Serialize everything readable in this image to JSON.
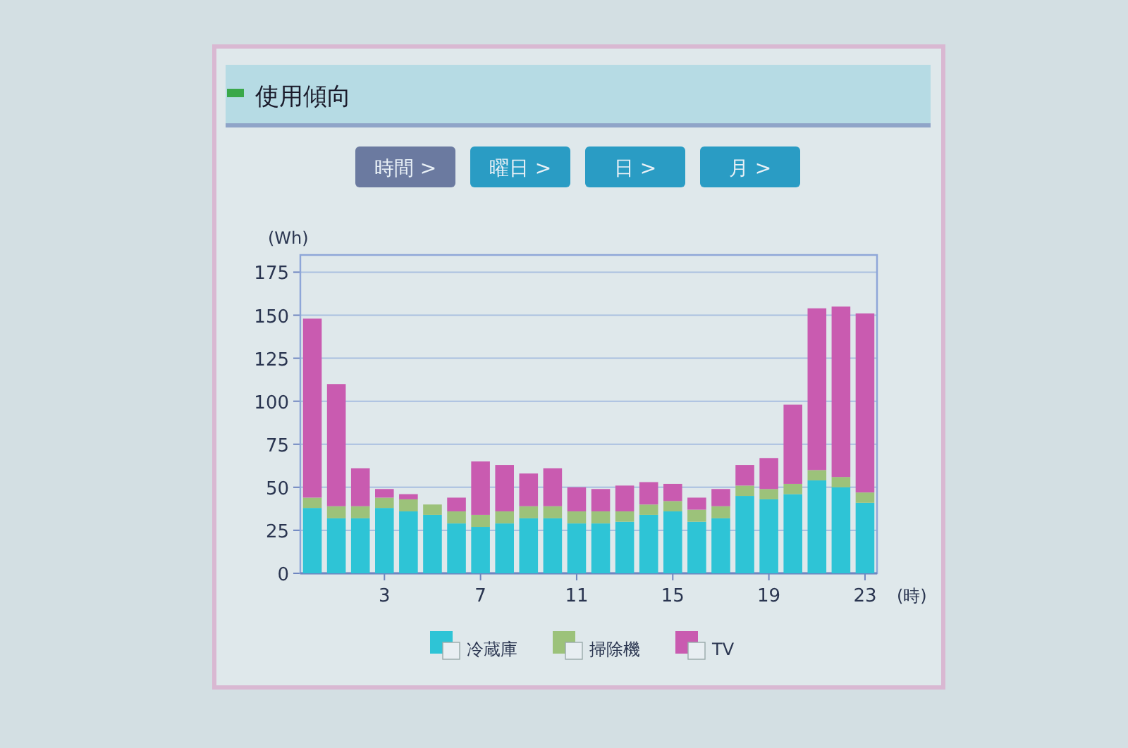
{
  "chart_data": {
    "type": "bar",
    "stacked": true,
    "title": "使用傾向",
    "annotations": [
      "時間 >",
      "曜日 >",
      "日 >",
      "月 >"
    ],
    "ylabel": "(Wh)",
    "xlabel": "(時)",
    "categories": [
      null,
      null,
      null,
      "3",
      null,
      null,
      null,
      "7",
      null,
      null,
      null,
      "11",
      null,
      null,
      null,
      "15",
      null,
      null,
      null,
      "19",
      null,
      null,
      null,
      "23"
    ],
    "series": [
      {
        "name": "冷蔵庫",
        "color": "#2ec4d6",
        "values": [
          38,
          32,
          32,
          38,
          36,
          34,
          29,
          27,
          29,
          32,
          32,
          29,
          29,
          30,
          34,
          36,
          30,
          32,
          45,
          43,
          46,
          54,
          50,
          41
        ]
      },
      {
        "name": "掃除機",
        "color": "#9cc27a",
        "values": [
          6,
          7,
          7,
          6,
          7,
          6,
          7,
          7,
          7,
          7,
          7,
          7,
          7,
          6,
          6,
          6,
          7,
          7,
          6,
          6,
          6,
          6,
          6,
          6
        ]
      },
      {
        "name": "TV",
        "color": "#c95bb0",
        "values": [
          104,
          71,
          22,
          5,
          3,
          0,
          8,
          31,
          27,
          19,
          22,
          14,
          13,
          15,
          13,
          10,
          7,
          10,
          12,
          18,
          46,
          94,
          99,
          104
        ]
      }
    ],
    "ylim": [
      0,
      185
    ],
    "yticks": [
      0,
      25,
      50,
      75,
      100,
      125,
      150,
      175
    ],
    "grid": "y",
    "legend": "bottom"
  }
}
